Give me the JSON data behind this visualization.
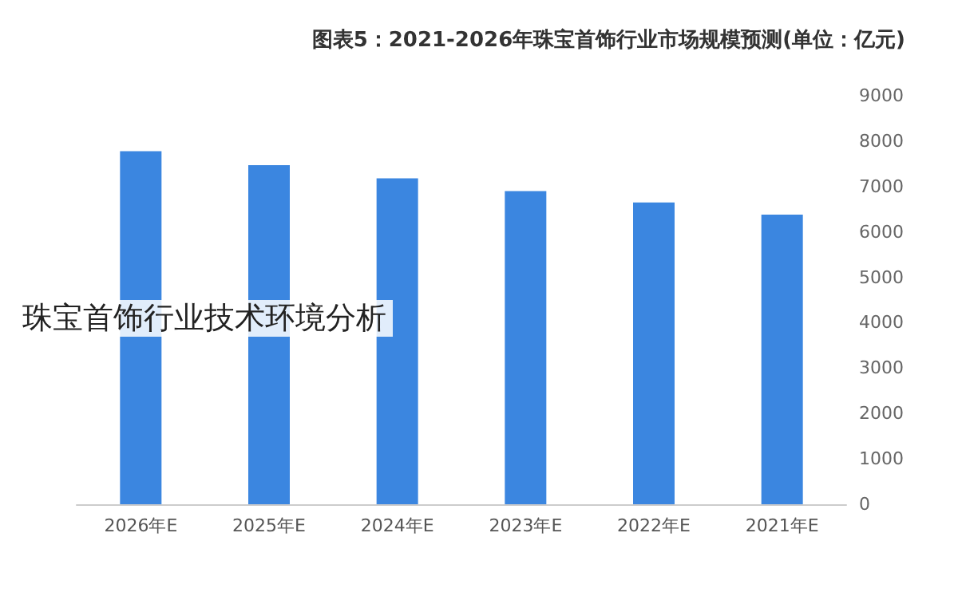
{
  "chart_data": {
    "type": "bar",
    "title": "图表5：2021-2026年珠宝首饰行业市场规模预测(单位：亿元)",
    "categories": [
      "2026年E",
      "2025年E",
      "2024年E",
      "2023年E",
      "2022年E",
      "2021年E"
    ],
    "values": [
      7780,
      7470,
      7180,
      6900,
      6650,
      6380
    ],
    "color": "#3b86e0",
    "ylim": [
      0,
      9000
    ],
    "yticks": [
      0,
      1000,
      2000,
      3000,
      4000,
      5000,
      6000,
      7000,
      8000,
      9000
    ],
    "grid": false,
    "annotations": [
      "珠宝首饰行业技术环境分析"
    ]
  }
}
